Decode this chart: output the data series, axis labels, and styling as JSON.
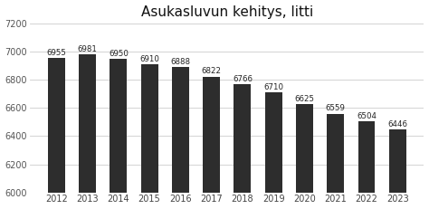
{
  "title": "Asukasluvun kehitys, litti",
  "categories": [
    "2012",
    "2013",
    "2014",
    "2015",
    "2016",
    "2017",
    "2018",
    "2019",
    "2020",
    "2021",
    "2022",
    "2023"
  ],
  "values": [
    6955,
    6981,
    6950,
    6910,
    6888,
    6822,
    6766,
    6710,
    6625,
    6559,
    6504,
    6446
  ],
  "bar_color": "#2d2d2d",
  "background_color": "#ffffff",
  "ylim": [
    6000,
    7200
  ],
  "yticks": [
    6000,
    6200,
    6400,
    6600,
    6800,
    7000,
    7200
  ],
  "title_fontsize": 11,
  "tick_fontsize": 7,
  "value_label_fontsize": 6.2,
  "bar_width": 0.55
}
